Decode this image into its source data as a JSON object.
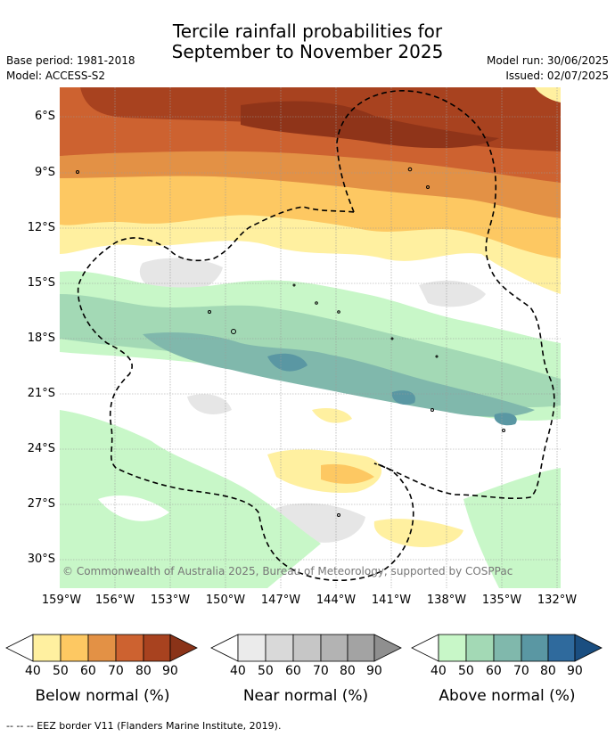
{
  "title_line1": "Tercile rainfall probabilities for",
  "title_line2": "September to November 2025",
  "meta_left": [
    "Base period: 1981-2018",
    "Model: ACCESS-S2"
  ],
  "meta_right": [
    "Model run: 30/06/2025",
    "Issued: 02/07/2025"
  ],
  "credit": "© Commonwealth of Australia 2025, Bureau of Meteorology, supported by COSPPac",
  "lat_ticks": [
    "6°S",
    "9°S",
    "12°S",
    "15°S",
    "18°S",
    "21°S",
    "24°S",
    "27°S",
    "30°S"
  ],
  "lon_ticks": [
    "159°W",
    "156°W",
    "153°W",
    "150°W",
    "147°W",
    "144°W",
    "141°W",
    "138°W",
    "135°W",
    "132°W"
  ],
  "colorbars": [
    {
      "title": "Below normal (%)",
      "colors": [
        "#fff0a0",
        "#fdc862",
        "#e39145",
        "#cd6230",
        "#a8421f",
        "#8a3318"
      ]
    },
    {
      "title": "Near normal (%)",
      "colors": [
        "#ebebeb",
        "#d9d9d9",
        "#c6c6c6",
        "#b3b3b3",
        "#a3a3a3",
        "#8f8f8f"
      ]
    },
    {
      "title": "Above normal (%)",
      "colors": [
        "#c8f7c8",
        "#a3d9b5",
        "#80b8ac",
        "#5a97a3",
        "#2f6a9d",
        "#1a4e80"
      ]
    }
  ],
  "cbar_ticks": [
    "40",
    "50",
    "60",
    "70",
    "80",
    "90"
  ],
  "footer": "--  --  -- EEZ border V11 (Flanders Marine Institute, 2019)."
}
